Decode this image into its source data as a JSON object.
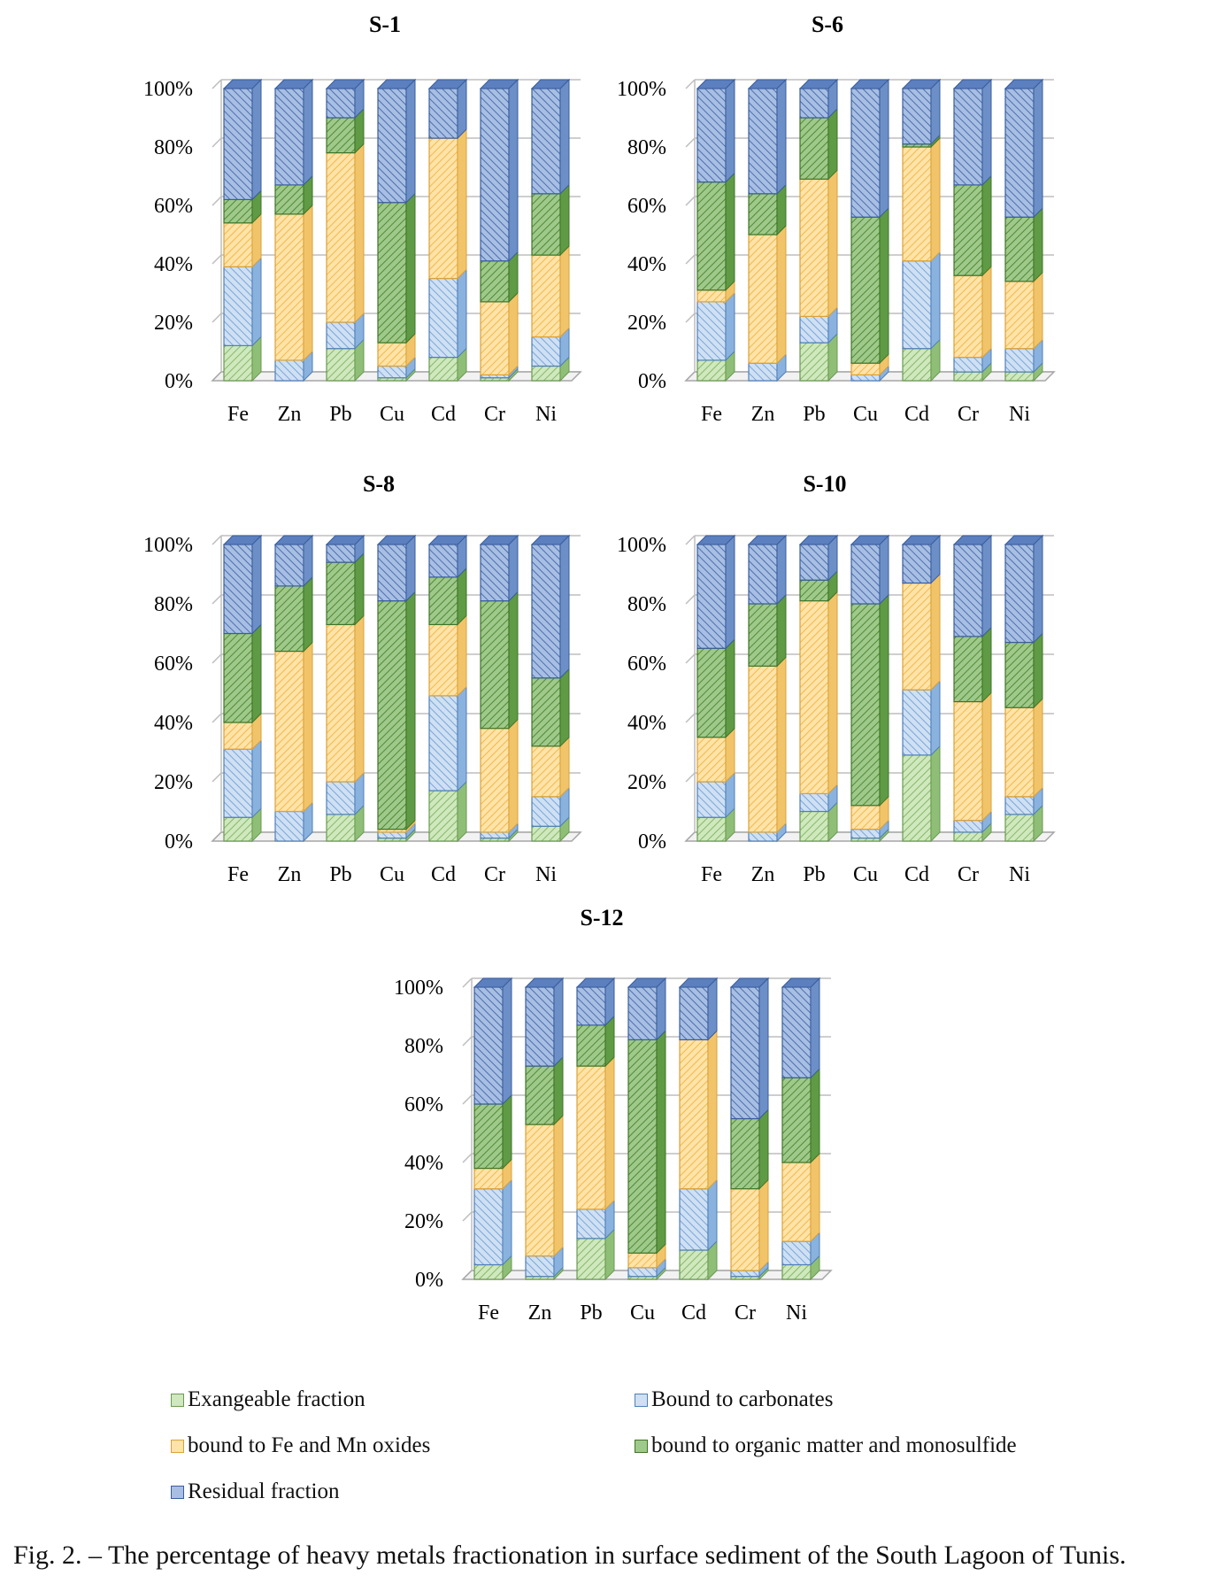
{
  "figure": {
    "caption": "Fig. 2. – The percentage of heavy metals fractionation in surface sediment of the South Lagoon of Tunis.",
    "legend": [
      {
        "key": "exchangeable",
        "label": "Exangeable fraction"
      },
      {
        "key": "carbonates",
        "label": "Bound to carbonates"
      },
      {
        "key": "oxides",
        "label": "bound to Fe and Mn oxides"
      },
      {
        "key": "organic",
        "label": "bound to organic matter and monosulfide"
      },
      {
        "key": "residual",
        "label": "Residual fraction"
      }
    ],
    "colors": {
      "exchangeable": "#a9d18e",
      "carbonates": "#9dc3e6",
      "oxides": "#ffd77a",
      "organic": "#70ad47",
      "residual": "#7f9fd1"
    }
  },
  "chart_data": [
    {
      "type": "bar",
      "stacked": "percent",
      "title": "S-1",
      "categories": [
        "Fe",
        "Zn",
        "Pb",
        "Cu",
        "Cd",
        "Cr",
        "Ni"
      ],
      "yticks": [
        "0%",
        "20%",
        "40%",
        "60%",
        "80%",
        "100%"
      ],
      "ylim": [
        0,
        100
      ],
      "series": [
        {
          "name": "Exangeable fraction",
          "values": [
            12,
            0,
            11,
            1,
            8,
            1,
            5
          ]
        },
        {
          "name": "Bound to carbonates",
          "values": [
            27,
            7,
            9,
            4,
            27,
            1,
            10
          ]
        },
        {
          "name": "bound to Fe and Mn oxides",
          "values": [
            15,
            50,
            58,
            8,
            48,
            25,
            28
          ]
        },
        {
          "name": "bound to organic matter and monosulfide",
          "values": [
            8,
            10,
            12,
            48,
            0,
            14,
            21
          ]
        },
        {
          "name": "Residual fraction",
          "values": [
            38,
            33,
            10,
            39,
            17,
            59,
            36
          ]
        }
      ]
    },
    {
      "type": "bar",
      "stacked": "percent",
      "title": "S-6",
      "categories": [
        "Fe",
        "Zn",
        "Pb",
        "Cu",
        "Cd",
        "Cr",
        "Ni"
      ],
      "yticks": [
        "0%",
        "20%",
        "40%",
        "60%",
        "80%",
        "100%"
      ],
      "ylim": [
        0,
        100
      ],
      "series": [
        {
          "name": "Exangeable fraction",
          "values": [
            7,
            0,
            13,
            0,
            11,
            3,
            3
          ]
        },
        {
          "name": "Bound to carbonates",
          "values": [
            20,
            6,
            9,
            2,
            30,
            5,
            8
          ]
        },
        {
          "name": "bound to Fe and Mn oxides",
          "values": [
            4,
            44,
            47,
            4,
            39,
            28,
            23
          ]
        },
        {
          "name": "bound to organic matter and monosulfide",
          "values": [
            37,
            14,
            21,
            50,
            1,
            31,
            22
          ]
        },
        {
          "name": "Residual fraction",
          "values": [
            32,
            36,
            10,
            44,
            19,
            33,
            44
          ]
        }
      ]
    },
    {
      "type": "bar",
      "stacked": "percent",
      "title": "S-8",
      "categories": [
        "Fe",
        "Zn",
        "Pb",
        "Cu",
        "Cd",
        "Cr",
        "Ni"
      ],
      "yticks": [
        "0%",
        "20%",
        "40%",
        "60%",
        "80%",
        "100%"
      ],
      "ylim": [
        0,
        100
      ],
      "series": [
        {
          "name": "Exangeable fraction",
          "values": [
            8,
            0,
            9,
            1,
            17,
            1,
            5
          ]
        },
        {
          "name": "Bound to carbonates",
          "values": [
            23,
            10,
            11,
            2,
            32,
            2,
            10
          ]
        },
        {
          "name": "bound to Fe and Mn oxides",
          "values": [
            9,
            54,
            53,
            1,
            24,
            35,
            17
          ]
        },
        {
          "name": "bound to organic matter and monosulfide",
          "values": [
            30,
            22,
            21,
            77,
            16,
            43,
            23
          ]
        },
        {
          "name": "Residual fraction",
          "values": [
            30,
            14,
            6,
            19,
            11,
            19,
            45
          ]
        }
      ]
    },
    {
      "type": "bar",
      "stacked": "percent",
      "title": "S-10",
      "categories": [
        "Fe",
        "Zn",
        "Pb",
        "Cu",
        "Cd",
        "Cr",
        "Ni"
      ],
      "yticks": [
        "0%",
        "20%",
        "40%",
        "60%",
        "80%",
        "100%"
      ],
      "ylim": [
        0,
        100
      ],
      "series": [
        {
          "name": "Exangeable fraction",
          "values": [
            8,
            0,
            10,
            1,
            29,
            3,
            9
          ]
        },
        {
          "name": "Bound to carbonates",
          "values": [
            12,
            3,
            6,
            3,
            22,
            4,
            6
          ]
        },
        {
          "name": "bound to Fe and Mn oxides",
          "values": [
            15,
            56,
            65,
            8,
            36,
            40,
            30
          ]
        },
        {
          "name": "bound to organic matter and monosulfide",
          "values": [
            30,
            21,
            7,
            68,
            0,
            22,
            22
          ]
        },
        {
          "name": "Residual fraction",
          "values": [
            35,
            20,
            12,
            20,
            13,
            31,
            33
          ]
        }
      ]
    },
    {
      "type": "bar",
      "stacked": "percent",
      "title": "S-12",
      "categories": [
        "Fe",
        "Zn",
        "Pb",
        "Cu",
        "Cd",
        "Cr",
        "Ni"
      ],
      "yticks": [
        "0%",
        "20%",
        "40%",
        "60%",
        "80%",
        "100%"
      ],
      "ylim": [
        0,
        100
      ],
      "series": [
        {
          "name": "Exangeable fraction",
          "values": [
            5,
            1,
            14,
            1,
            10,
            1,
            5
          ]
        },
        {
          "name": "Bound to carbonates",
          "values": [
            26,
            7,
            10,
            3,
            21,
            2,
            8
          ]
        },
        {
          "name": "bound to Fe and Mn oxides",
          "values": [
            7,
            45,
            49,
            5,
            51,
            28,
            27
          ]
        },
        {
          "name": "bound to organic matter and monosulfide",
          "values": [
            22,
            20,
            14,
            73,
            0,
            24,
            29
          ]
        },
        {
          "name": "Residual fraction",
          "values": [
            40,
            27,
            13,
            18,
            18,
            45,
            31
          ]
        }
      ]
    }
  ]
}
